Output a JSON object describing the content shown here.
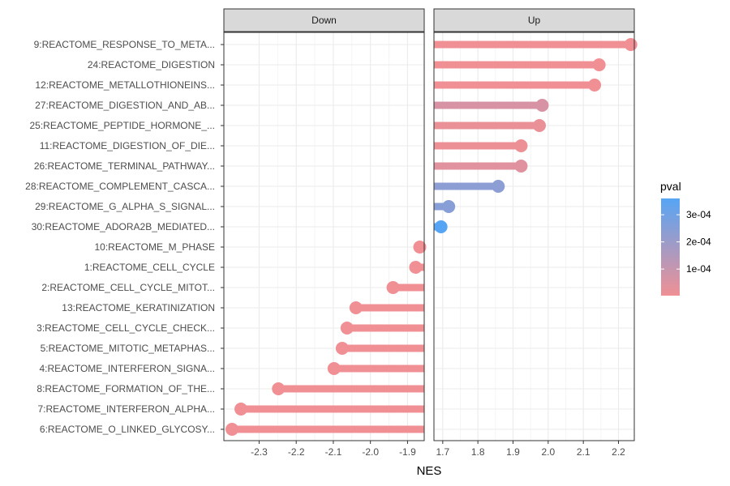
{
  "chart_data": {
    "type": "lollipop",
    "xlabel": "NES",
    "ylabel": "",
    "facets": [
      {
        "name": "Down",
        "xlim": [
          -2.395,
          -1.855
        ],
        "ticks": [
          -2.3,
          -2.2,
          -2.1,
          -2.0,
          -1.9
        ],
        "tick_labels": [
          "-2.3",
          "-2.2",
          "-2.1",
          "-2.0",
          "-1.9"
        ]
      },
      {
        "name": "Up",
        "xlim": [
          1.675,
          2.245
        ],
        "ticks": [
          1.7,
          1.8,
          1.9,
          2.0,
          2.1,
          2.2
        ],
        "tick_labels": [
          "1.7",
          "1.8",
          "1.9",
          "2.0",
          "2.1",
          "2.2"
        ]
      }
    ],
    "categories": [
      "9:REACTOME_RESPONSE_TO_META...",
      "24:REACTOME_DIGESTION",
      "12:REACTOME_METALLOTHIONEINS...",
      "27:REACTOME_DIGESTION_AND_AB...",
      "25:REACTOME_PEPTIDE_HORMONE_...",
      "11:REACTOME_DIGESTION_OF_DIE...",
      "26:REACTOME_TERMINAL_PATHWAY...",
      "28:REACTOME_COMPLEMENT_CASCA...",
      "29:REACTOME_G_ALPHA_S_SIGNAL...",
      "30:REACTOME_ADORA2B_MEDIATED...",
      "10:REACTOME_M_PHASE",
      "1:REACTOME_CELL_CYCLE",
      "2:REACTOME_CELL_CYCLE_MITOT...",
      "13:REACTOME_KERATINIZATION",
      "3:REACTOME_CELL_CYCLE_CHECK...",
      "5:REACTOME_MITOTIC_METAPHAS...",
      "4:REACTOME_INTERFERON_SIGNA...",
      "8:REACTOME_FORMATION_OF_THE...",
      "7:REACTOME_INTERFERON_ALPHA...",
      "6:REACTOME_O_LINKED_GLYCOSY..."
    ],
    "points": [
      {
        "pathway": "9:REACTOME_RESPONSE_TO_META...",
        "facet": "Up",
        "nes": 2.235,
        "pval": 2e-06
      },
      {
        "pathway": "24:REACTOME_DIGESTION",
        "facet": "Up",
        "nes": 2.145,
        "pval": 2e-06
      },
      {
        "pathway": "12:REACTOME_METALLOTHIONEINS...",
        "facet": "Up",
        "nes": 2.132,
        "pval": 2e-06
      },
      {
        "pathway": "27:REACTOME_DIGESTION_AND_AB...",
        "facet": "Up",
        "nes": 1.983,
        "pval": 6e-05
      },
      {
        "pathway": "25:REACTOME_PEPTIDE_HORMONE_...",
        "facet": "Up",
        "nes": 1.975,
        "pval": 1.5e-05
      },
      {
        "pathway": "11:REACTOME_DIGESTION_OF_DIE...",
        "facet": "Up",
        "nes": 1.923,
        "pval": 8e-06
      },
      {
        "pathway": "26:REACTOME_TERMINAL_PATHWAY...",
        "facet": "Up",
        "nes": 1.923,
        "pval": 4e-05
      },
      {
        "pathway": "28:REACTOME_COMPLEMENT_CASCA...",
        "facet": "Up",
        "nes": 1.858,
        "pval": 0.000235
      },
      {
        "pathway": "29:REACTOME_G_ALPHA_S_SIGNAL...",
        "facet": "Up",
        "nes": 1.717,
        "pval": 0.000245
      },
      {
        "pathway": "30:REACTOME_ADORA2B_MEDIATED...",
        "facet": "Up",
        "nes": 1.695,
        "pval": 0.00036
      },
      {
        "pathway": "10:REACTOME_M_PHASE",
        "facet": "Down",
        "nes": -1.867,
        "pval": 2e-06
      },
      {
        "pathway": "1:REACTOME_CELL_CYCLE",
        "facet": "Down",
        "nes": -1.878,
        "pval": 2e-06
      },
      {
        "pathway": "2:REACTOME_CELL_CYCLE_MITOT...",
        "facet": "Down",
        "nes": -1.939,
        "pval": 2e-06
      },
      {
        "pathway": "13:REACTOME_KERATINIZATION",
        "facet": "Down",
        "nes": -2.039,
        "pval": 2e-06
      },
      {
        "pathway": "3:REACTOME_CELL_CYCLE_CHECK...",
        "facet": "Down",
        "nes": -2.063,
        "pval": 2e-06
      },
      {
        "pathway": "5:REACTOME_MITOTIC_METAPHAS...",
        "facet": "Down",
        "nes": -2.076,
        "pval": 2e-06
      },
      {
        "pathway": "4:REACTOME_INTERFERON_SIGNA...",
        "facet": "Down",
        "nes": -2.098,
        "pval": 2e-06
      },
      {
        "pathway": "8:REACTOME_FORMATION_OF_THE...",
        "facet": "Down",
        "nes": -2.248,
        "pval": 2e-06
      },
      {
        "pathway": "7:REACTOME_INTERFERON_ALPHA...",
        "facet": "Down",
        "nes": -2.349,
        "pval": 2e-06
      },
      {
        "pathway": "6:REACTOME_O_LINKED_GLYCOSY...",
        "facet": "Down",
        "nes": -2.373,
        "pval": 2e-06
      }
    ],
    "legend": {
      "title": "pval",
      "position": "right",
      "range": [
        2e-06,
        0.00036
      ],
      "breaks": [
        0.0001,
        0.0002,
        0.0003
      ],
      "break_labels": [
        "1e-04",
        "2e-04",
        "3e-04"
      ],
      "low_color": "#f09094",
      "high_color": "#56a5f5"
    },
    "grid": true
  },
  "colors": {
    "panel_border": "#333333",
    "grid_major": "#ebebeb",
    "grid_minor": "#f5f5f5",
    "strip_fill": "#d9d9d9",
    "text": "#4d4d4d"
  }
}
